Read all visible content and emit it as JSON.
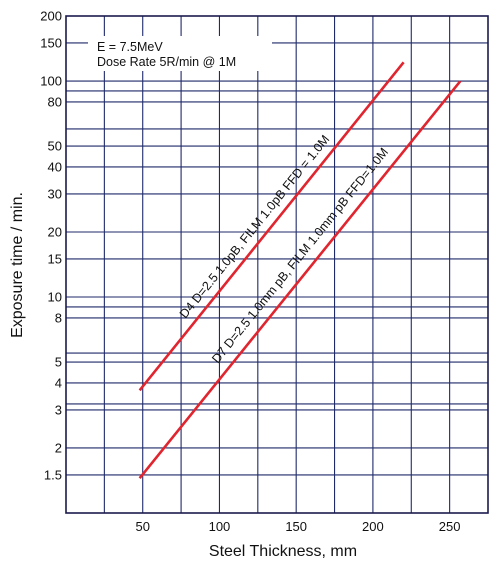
{
  "chart_data": {
    "type": "line",
    "xlabel": "Steel Thickness, mm",
    "ylabel": "Exposure time / min.",
    "xlim": [
      0,
      275
    ],
    "ylim": [
      1,
      200
    ],
    "y_scale": "log",
    "grid": true,
    "x_ticks": [
      50,
      100,
      150,
      200,
      250
    ],
    "x_tick_labels": [
      "50",
      "100",
      "150",
      "200",
      "250"
    ],
    "y_ticks": [
      1.5,
      2,
      3,
      4,
      5,
      8,
      10,
      15,
      20,
      30,
      40,
      50,
      80,
      100,
      150,
      200
    ],
    "y_tick_labels": [
      "1.5",
      "2",
      "3",
      "4",
      "5",
      "8",
      "10",
      "15",
      "20",
      "30",
      "40",
      "50",
      "80",
      "100",
      "150",
      "200"
    ],
    "x_grid": [
      25,
      50,
      75,
      100,
      125,
      150,
      175,
      200,
      225,
      250
    ],
    "y_grid": [
      1.5,
      2,
      3,
      3.2,
      4,
      5,
      5.5,
      8,
      9,
      10,
      15,
      20,
      30,
      40,
      50,
      60,
      80,
      90,
      100,
      150,
      200
    ],
    "annotation": {
      "line1": "E = 7.5MeV",
      "line2": "Dose Rate 5R/min @ 1M"
    },
    "series": [
      {
        "name": "D4 D=2.5 1.0pB, FILM 1.0pB FFD = 1.0M",
        "color": "#e0252f",
        "x": [
          48,
          220
        ],
        "y": [
          3.7,
          122
        ]
      },
      {
        "name": "D7 D=2.5 1.0mm pB, FILM 1.0mm pB FFD=1.0M",
        "color": "#e0252f",
        "x": [
          48,
          257
        ],
        "y": [
          1.45,
          100
        ]
      }
    ]
  }
}
